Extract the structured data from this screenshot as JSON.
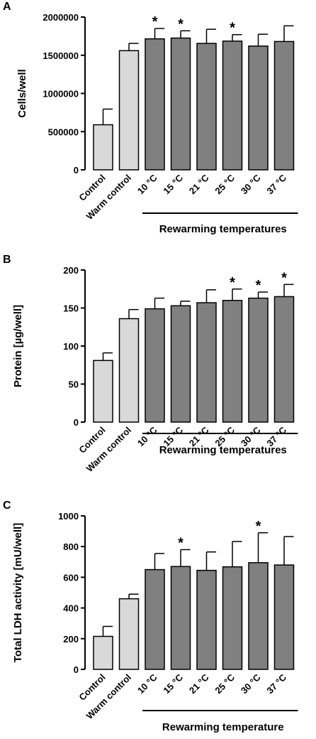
{
  "colors": {
    "control": "#d9d9d9",
    "rewarm": "#808080",
    "stroke": "#000000"
  },
  "chart_data": [
    {
      "type": "bar",
      "panel": "A",
      "ylabel": "Cells/well",
      "ylim": [
        0,
        2000000
      ],
      "yticks": [
        0,
        500000,
        1000000,
        1500000,
        2000000
      ],
      "ytick_labels": [
        "0",
        "500000",
        "1000000",
        "1500000",
        "2000000"
      ],
      "categories": [
        "Control",
        "Warm control",
        "10 °C",
        "15 °C",
        "21 °C",
        "25 °C",
        "30 °C",
        "37 °C"
      ],
      "values": [
        590000,
        1560000,
        1715000,
        1725000,
        1655000,
        1685000,
        1620000,
        1680000
      ],
      "errors": [
        205000,
        95000,
        135000,
        95000,
        185000,
        85000,
        155000,
        205000
      ],
      "significant": [
        false,
        false,
        true,
        true,
        false,
        true,
        false,
        false
      ],
      "star_label": "*",
      "group_label": "Rewarming temperatures",
      "group_start": 2
    },
    {
      "type": "bar",
      "panel": "B",
      "ylabel": "Protein [µg/well]",
      "ylim": [
        0,
        200
      ],
      "yticks": [
        0,
        50,
        100,
        150,
        200
      ],
      "ytick_labels": [
        "0",
        "50",
        "100",
        "150",
        "200"
      ],
      "categories": [
        "Control",
        "Warm control",
        "10 °C",
        "15 °C",
        "21 °C",
        "25 °C",
        "30 °C",
        "37 °C"
      ],
      "values": [
        81,
        136,
        149,
        153,
        157,
        160,
        163,
        165
      ],
      "errors": [
        10,
        12,
        14,
        6,
        17,
        15,
        8,
        16
      ],
      "significant": [
        false,
        false,
        false,
        false,
        false,
        true,
        true,
        true
      ],
      "star_label": "*",
      "group_label": "Rewarming temperatures",
      "group_start": 2
    },
    {
      "type": "bar",
      "panel": "C",
      "ylabel": "Total LDH activity [mU/well]",
      "ylim": [
        0,
        1000
      ],
      "yticks": [
        0,
        200,
        400,
        600,
        800,
        1000
      ],
      "ytick_labels": [
        "0",
        "200",
        "400",
        "600",
        "800",
        "1000"
      ],
      "categories": [
        "Control",
        "Warm control",
        "10 °C",
        "15 °C",
        "21 °C",
        "25 °C",
        "30 °C",
        "37 °C"
      ],
      "values": [
        215,
        460,
        650,
        670,
        645,
        668,
        695,
        680
      ],
      "errors": [
        65,
        30,
        105,
        110,
        120,
        165,
        195,
        185
      ],
      "significant": [
        false,
        false,
        false,
        true,
        false,
        false,
        true,
        false
      ],
      "star_label": "*",
      "group_label": "Rewarming temperature",
      "group_start": 2
    }
  ]
}
